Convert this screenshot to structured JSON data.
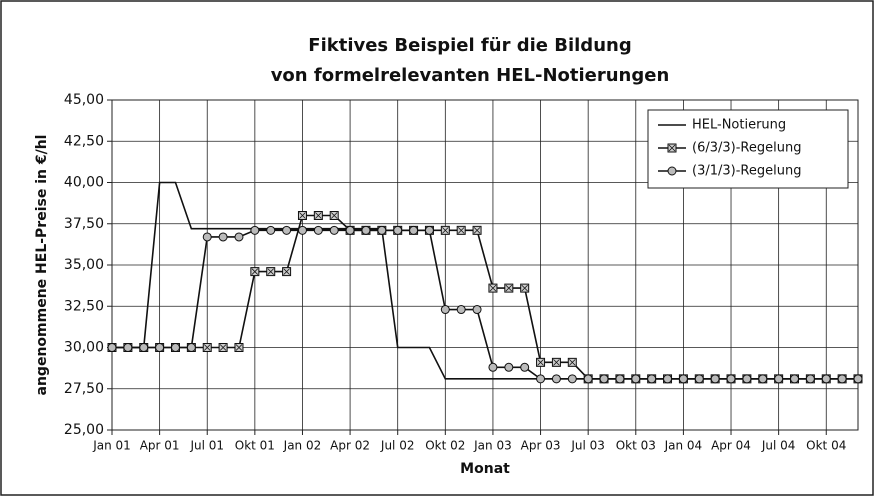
{
  "chart_data": {
    "type": "line",
    "title": [
      "Fiktives Beispiel für die Bildung",
      "von formelrelevanten HEL-Notierungen"
    ],
    "y_label": "angenommene HEL-Preise in €/hl",
    "x_label": "Monat",
    "categories": [
      "Jan 01",
      null,
      null,
      "Apr 01",
      null,
      null,
      "Jul 01",
      null,
      null,
      "Okt 01",
      null,
      null,
      "Jan 02",
      null,
      null,
      "Apr 02",
      null,
      null,
      "Jul 02",
      null,
      null,
      "Okt 02",
      null,
      null,
      "Jan 03",
      null,
      null,
      "Apr 03",
      null,
      null,
      "Jul 03",
      null,
      null,
      "Okt 03",
      null,
      null,
      "Jan 04",
      null,
      null,
      "Apr 04",
      null,
      null,
      "Jul 04",
      null,
      null,
      "Okt 04",
      null,
      null
    ],
    "ylim": [
      25,
      45
    ],
    "yticks": [
      {
        "value": 25,
        "label": "25,00"
      },
      {
        "value": 27.5,
        "label": "27,50"
      },
      {
        "value": 30,
        "label": "30,00"
      },
      {
        "value": 32.5,
        "label": "32,50"
      },
      {
        "value": 35,
        "label": "35,00"
      },
      {
        "value": 37.5,
        "label": "37,50"
      },
      {
        "value": 40,
        "label": "40,00"
      },
      {
        "value": 42.5,
        "label": "42,50"
      },
      {
        "value": 45,
        "label": "45,00"
      }
    ],
    "grid": true,
    "legend": "upper right",
    "series": [
      {
        "name": "HEL-Notierung",
        "color": "#111111",
        "marker": "none",
        "values": [
          30,
          30,
          30,
          40,
          40,
          37.2,
          37.2,
          37.2,
          37.2,
          37.2,
          37.2,
          37.2,
          37.2,
          37.2,
          37.2,
          37.2,
          37.2,
          37.2,
          30,
          30,
          30,
          28.1,
          28.1,
          28.1,
          28.1,
          28.1,
          28.1,
          28.1,
          28.1,
          28.1,
          28.1,
          28.1,
          28.1,
          28.1,
          28.1,
          28.1,
          28.1,
          28.1,
          28.1,
          28.1,
          28.1,
          28.1,
          28.1,
          28.1,
          28.1,
          28.1,
          28.1,
          28.1
        ]
      },
      {
        "name": "(6/3/3)-Regelung",
        "color": "#111111",
        "marker": "square",
        "values": [
          30,
          30,
          30,
          30,
          30,
          30,
          30,
          30,
          30,
          34.6,
          34.6,
          34.6,
          38,
          38,
          38,
          37.1,
          37.1,
          37.1,
          37.1,
          37.1,
          37.1,
          37.1,
          37.1,
          37.1,
          33.6,
          33.6,
          33.6,
          29.1,
          29.1,
          29.1,
          28.1,
          28.1,
          28.1,
          28.1,
          28.1,
          28.1,
          28.1,
          28.1,
          28.1,
          28.1,
          28.1,
          28.1,
          28.1,
          28.1,
          28.1,
          28.1,
          28.1,
          28.1
        ]
      },
      {
        "name": "(3/1/3)-Regelung",
        "color": "#111111",
        "marker": "circle",
        "values": [
          30,
          30,
          30,
          30,
          30,
          30,
          36.7,
          36.7,
          36.7,
          37.1,
          37.1,
          37.1,
          37.1,
          37.1,
          37.1,
          37.1,
          37.1,
          37.1,
          37.1,
          37.1,
          37.1,
          32.3,
          32.3,
          32.3,
          28.8,
          28.8,
          28.8,
          28.1,
          28.1,
          28.1,
          28.1,
          28.1,
          28.1,
          28.1,
          28.1,
          28.1,
          28.1,
          28.1,
          28.1,
          28.1,
          28.1,
          28.1,
          28.1,
          28.1,
          28.1,
          28.1,
          28.1,
          28.1
        ]
      }
    ]
  }
}
